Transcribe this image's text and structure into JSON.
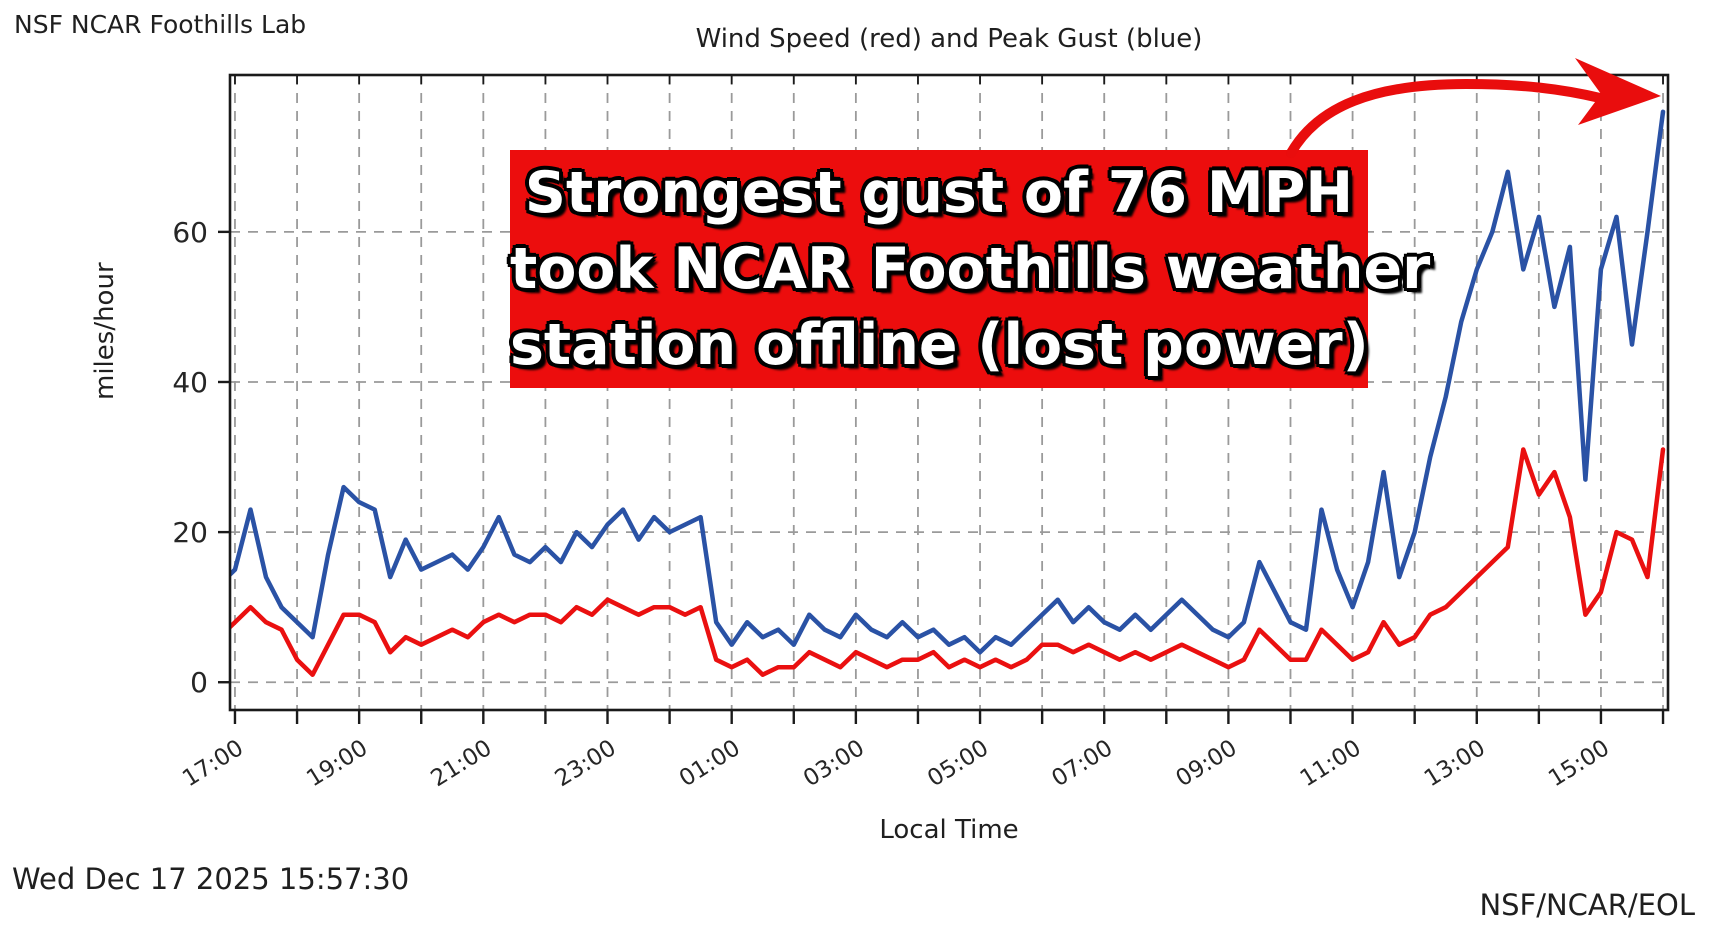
{
  "page": {
    "background": "#ffffff"
  },
  "header": {
    "station_label": "NSF NCAR Foothills Lab",
    "title": "Wind Speed (red) and Peak Gust (blue)"
  },
  "footer": {
    "timestamp": "Wed Dec 17 2025 15:57:30",
    "credit": "NSF/NCAR/EOL"
  },
  "annotation": {
    "lines": [
      "Strongest gust of 76 MPH",
      "took NCAR Foothills weather",
      "station offline (lost power)"
    ],
    "box_color": "#ec0d0d",
    "text_color": "#ffffff",
    "outline_color": "#000000",
    "arrow_color": "#e90d0d",
    "peak_gust_mph": 76
  },
  "chart_data": {
    "type": "line",
    "title": "Wind Speed (red) and Peak Gust (blue)",
    "xlabel": "Local Time",
    "ylabel": "miles/hour",
    "grid": true,
    "x_start_hour": 16.75,
    "x_step_hours": 0.25,
    "x_axis_range_hours": [
      16.92,
      40.08
    ],
    "y_axis_range": [
      -3.7,
      80.9
    ],
    "y_ticks": [
      0,
      20,
      40,
      60
    ],
    "x_tick_hours": [
      17,
      19,
      21,
      23,
      25,
      27,
      29,
      31,
      33,
      35,
      37,
      39
    ],
    "x_tick_labels": [
      "17:00",
      "19:00",
      "21:00",
      "23:00",
      "01:00",
      "03:00",
      "05:00",
      "07:00",
      "09:00",
      "11:00",
      "13:00",
      "15:00"
    ],
    "grid_hour_start": 17,
    "grid_hour_end": 40,
    "axis_color": "#1a1a1a",
    "grid_color": "#9a9a9a",
    "tick_label_color": "#262626",
    "series": [
      {
        "name": "Wind Speed",
        "color": "#ea1010",
        "values": [
          6,
          8,
          10,
          8,
          7,
          3,
          1,
          5,
          9,
          9,
          8,
          4,
          6,
          5,
          6,
          7,
          6,
          8,
          9,
          8,
          9,
          9,
          8,
          10,
          9,
          11,
          10,
          9,
          10,
          10,
          9,
          10,
          3,
          2,
          3,
          1,
          2,
          2,
          4,
          3,
          2,
          4,
          3,
          2,
          3,
          3,
          4,
          2,
          3,
          2,
          3,
          2,
          3,
          5,
          5,
          4,
          5,
          4,
          3,
          4,
          3,
          4,
          5,
          4,
          3,
          2,
          3,
          7,
          5,
          3,
          3,
          7,
          5,
          3,
          4,
          8,
          5,
          6,
          9,
          10,
          12,
          14,
          16,
          18,
          31,
          25,
          28,
          22,
          9,
          12,
          20,
          19,
          14,
          31
        ]
      },
      {
        "name": "Peak Gust",
        "color": "#2a52a5",
        "values": [
          13,
          15,
          23,
          14,
          10,
          8,
          6,
          17,
          26,
          24,
          23,
          14,
          19,
          15,
          16,
          17,
          15,
          18,
          22,
          17,
          16,
          18,
          16,
          20,
          18,
          21,
          23,
          19,
          22,
          20,
          21,
          22,
          8,
          5,
          8,
          6,
          7,
          5,
          9,
          7,
          6,
          9,
          7,
          6,
          8,
          6,
          7,
          5,
          6,
          4,
          6,
          5,
          7,
          9,
          11,
          8,
          10,
          8,
          7,
          9,
          7,
          9,
          11,
          9,
          7,
          6,
          8,
          16,
          12,
          8,
          7,
          23,
          15,
          10,
          16,
          28,
          14,
          20,
          30,
          38,
          48,
          55,
          60,
          68,
          55,
          62,
          50,
          58,
          27,
          55,
          62,
          45,
          60,
          76
        ]
      }
    ]
  }
}
